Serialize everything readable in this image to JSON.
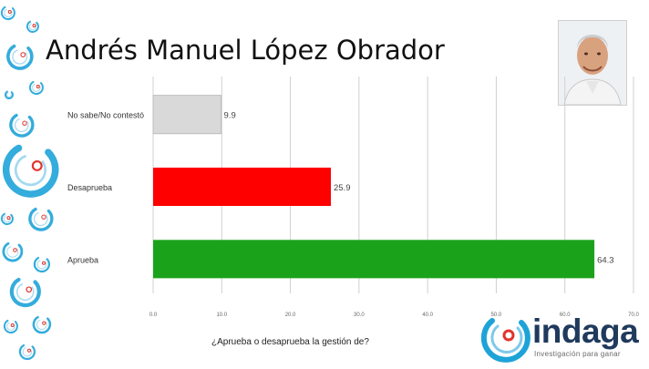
{
  "title": "Andrés Manuel López Obrador",
  "photo_alt": "portrait-photo",
  "question": "¿Aprueba o desaprueba la gestión de?",
  "logo": {
    "word": "indaga",
    "tagline": "Investigación para ganar"
  },
  "colors": {
    "no_sabe": "#d9d9d9",
    "desaprueba": "#ff0000",
    "aprueba": "#1aa31a",
    "accent_blue": "#1ea3d8",
    "accent_red": "#e2332b"
  },
  "chart_data": {
    "type": "bar",
    "orientation": "horizontal",
    "categories": [
      "No sabe/No contestó",
      "Desaprueba",
      "Aprueba"
    ],
    "values": [
      9.9,
      25.9,
      64.3
    ],
    "value_labels": [
      "9.9",
      "25.9",
      "64.3"
    ],
    "bar_colors": [
      "#d9d9d9",
      "#ff0000",
      "#1aa31a"
    ],
    "xlim": [
      0,
      70
    ],
    "xticks": [
      "0.0",
      "10.0",
      "20.0",
      "30.0",
      "40.0",
      "50.0",
      "60.0",
      "70.0"
    ],
    "grid": true
  }
}
